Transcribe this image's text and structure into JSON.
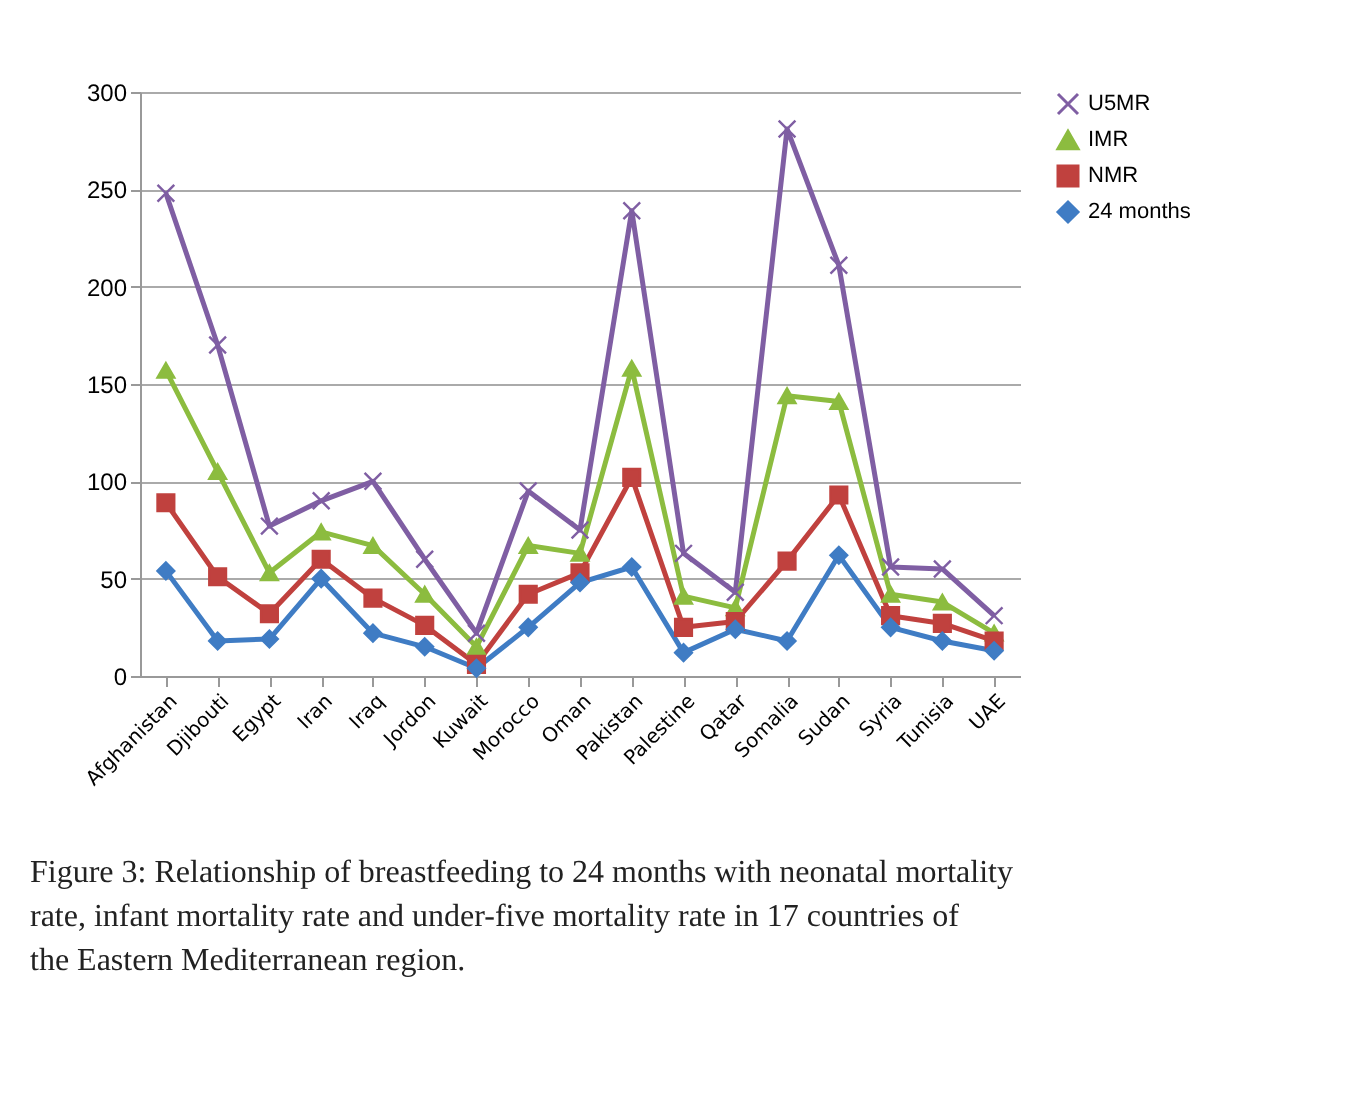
{
  "chart_data": {
    "type": "line",
    "categories": [
      "Afghanistan",
      "Djibouti",
      "Egypt",
      "Iran",
      "Iraq",
      "Jordon",
      "Kuwait",
      "Morocco",
      "Oman",
      "Pakistan",
      "Palestine",
      "Qatar",
      "Somalia",
      "Sudan",
      "Syria",
      "Tunisia",
      "UAE"
    ],
    "series": [
      {
        "name": "U5MR",
        "color": "#7f5ea3",
        "marker": "cross",
        "values": [
          248,
          170,
          77,
          90,
          100,
          60,
          22,
          95,
          75,
          239,
          63,
          43,
          281,
          211,
          56,
          55,
          31
        ]
      },
      {
        "name": "IMR",
        "color": "#8cbc3f",
        "marker": "triangle",
        "values": [
          157,
          105,
          53,
          74,
          67,
          42,
          15,
          67,
          63,
          158,
          41,
          35,
          144,
          141,
          42,
          38,
          22
        ]
      },
      {
        "name": "NMR",
        "color": "#c0413e",
        "marker": "square",
        "values": [
          89,
          51,
          32,
          60,
          40,
          26,
          6,
          42,
          53,
          102,
          25,
          28,
          59,
          93,
          31,
          27,
          18
        ]
      },
      {
        "name": "24 months",
        "color": "#3f7cc4",
        "marker": "diamond",
        "values": [
          54,
          18,
          19,
          50,
          22,
          15,
          4,
          25,
          48,
          56,
          12,
          24,
          18,
          62,
          25,
          18,
          13
        ]
      }
    ],
    "ylim": [
      0,
      300
    ],
    "yticks": [
      0,
      50,
      100,
      150,
      200,
      250,
      300
    ],
    "grid": "y",
    "legend": "right",
    "annotations": [
      "Figure 3: Relationship of breastfeeding to 24 months with neonatal mortality rate, infant mortality rate and under-five mortality rate in 17 countries of the Eastern Mediterranean region."
    ]
  }
}
